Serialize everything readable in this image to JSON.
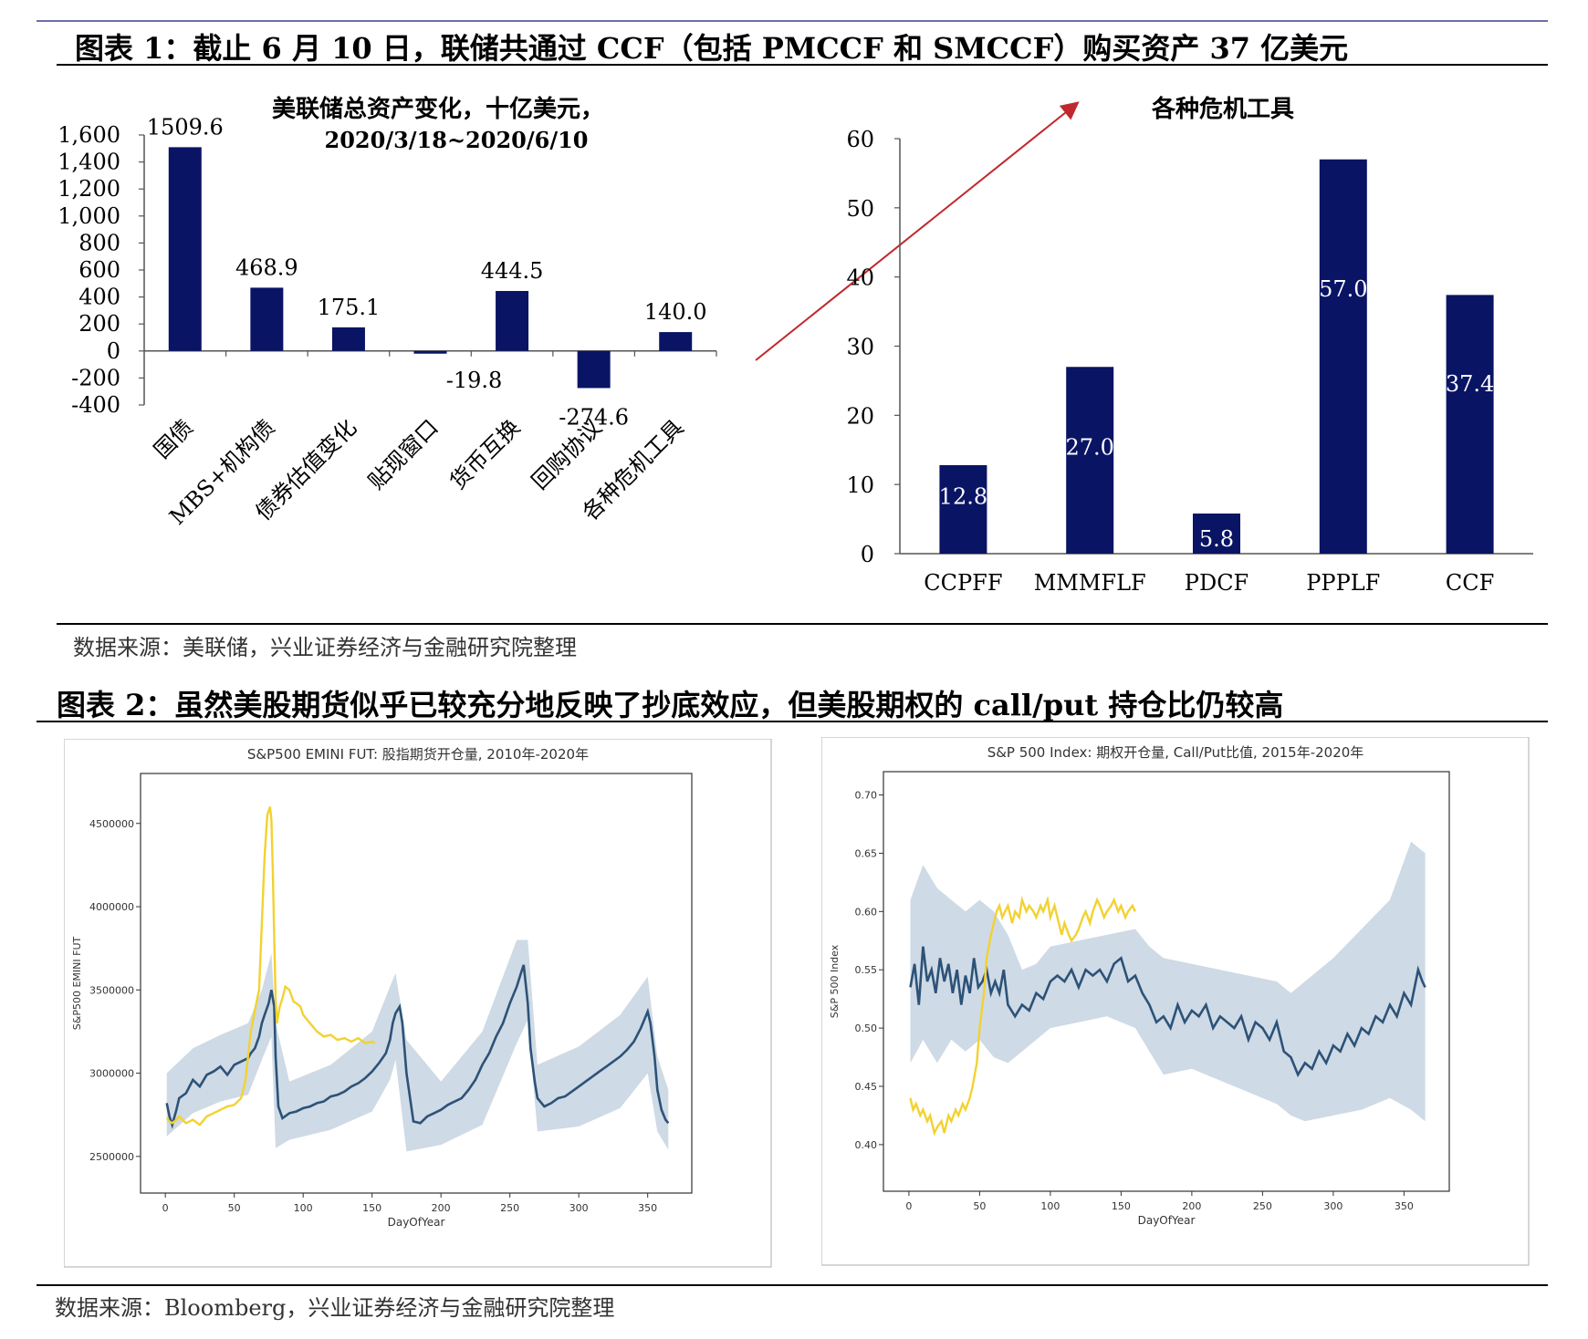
{
  "figure1": {
    "title": "图表 1：截止 6 月 10 日，联储共通过 CCF（包括 PMCCF 和 SMCCF）购买资产 37 亿美元",
    "source": "数据来源：美联储，兴业证券经济与金融研究院整理"
  },
  "figure2": {
    "title": "图表 2：虽然美股期货似乎已较充分地反映了抄底效应，但美股期权的 call/put 持仓比仍较高",
    "source": "数据来源：Bloomberg，兴业证券经济与金融研究院整理"
  },
  "colors": {
    "bar": "#0a1464",
    "arrow": "#c0282d",
    "series_band": "#c9d6e2",
    "series_line": "#2d5278",
    "series_2020": "#f2d231"
  },
  "chart_data": [
    {
      "type": "bar",
      "title": "美联储总资产变化，十亿美元，",
      "subtitle": "2020/3/18~2020/6/10",
      "categories": [
        "国债",
        "MBS+机构债",
        "债券估值变化",
        "贴现窗口",
        "货币互换",
        "回购协议",
        "各种危机工具"
      ],
      "values": [
        1509.6,
        468.9,
        175.1,
        -19.8,
        444.5,
        -274.6,
        140.0
      ],
      "value_labels": [
        "1509.6",
        "468.9",
        "175.1",
        "-19.8",
        "444.5",
        "-274.6",
        "140.0"
      ],
      "ylim": [
        -400,
        1600
      ],
      "yticks": [
        "-400",
        "-200",
        "0",
        "200",
        "400",
        "600",
        "800",
        "1,000",
        "1,200",
        "1,400",
        "1,600"
      ],
      "ytick_values": [
        -400,
        -200,
        0,
        200,
        400,
        600,
        800,
        1000,
        1200,
        1400,
        1600
      ],
      "grid": false
    },
    {
      "type": "bar",
      "title": "各种危机工具",
      "categories": [
        "CCPFF",
        "MMMFLF",
        "PDCF",
        "PPPLF",
        "CCF"
      ],
      "values": [
        12.8,
        27.0,
        5.8,
        57.0,
        37.4
      ],
      "value_labels": [
        "12.8",
        "27.0",
        "5.8",
        "57.0",
        "37.4"
      ],
      "ylim": [
        0,
        60
      ],
      "yticks": [
        "0",
        "10",
        "20",
        "30",
        "40",
        "50",
        "60"
      ],
      "ytick_values": [
        0,
        10,
        20,
        30,
        40,
        50,
        60
      ],
      "grid": false
    },
    {
      "type": "line",
      "title": "S&P500 EMINI FUT: 股指期货开仓量, 2010年-2020年",
      "xlabel": "DayOfYear",
      "ylabel": "S&P500 EMINI FUT",
      "xlim": [
        -18,
        382
      ],
      "ylim": [
        2280000,
        4800000
      ],
      "xticks": [
        "0",
        "50",
        "100",
        "150",
        "200",
        "250",
        "300",
        "350"
      ],
      "xtick_values": [
        0,
        50,
        100,
        150,
        200,
        250,
        300,
        350
      ],
      "yticks": [
        "2500000",
        "3000000",
        "3500000",
        "4000000",
        "4500000"
      ],
      "ytick_values": [
        2500000,
        3000000,
        3500000,
        4000000,
        4500000
      ],
      "grid": false,
      "series": [
        {
          "role": "mean",
          "x": [
            1,
            3,
            5,
            8,
            10,
            15,
            20,
            25,
            30,
            35,
            40,
            45,
            50,
            55,
            60,
            62,
            65,
            68,
            70,
            72,
            75,
            77,
            79,
            80,
            82,
            85,
            90,
            95,
            100,
            105,
            110,
            115,
            120,
            125,
            130,
            135,
            140,
            145,
            150,
            155,
            160,
            163,
            165,
            167,
            170,
            172,
            175,
            180,
            185,
            190,
            195,
            200,
            205,
            210,
            215,
            220,
            225,
            230,
            235,
            240,
            245,
            250,
            255,
            258,
            260,
            263,
            265,
            268,
            270,
            275,
            280,
            285,
            290,
            295,
            300,
            305,
            310,
            315,
            320,
            325,
            330,
            335,
            340,
            345,
            348,
            350,
            352,
            355,
            357,
            360,
            363,
            365
          ],
          "y": [
            2820000,
            2740000,
            2690000,
            2780000,
            2850000,
            2880000,
            2960000,
            2920000,
            2990000,
            3010000,
            3040000,
            2990000,
            3050000,
            3070000,
            3090000,
            3120000,
            3150000,
            3220000,
            3300000,
            3350000,
            3420000,
            3500000,
            3400000,
            3100000,
            2800000,
            2730000,
            2760000,
            2770000,
            2790000,
            2800000,
            2820000,
            2830000,
            2860000,
            2870000,
            2890000,
            2920000,
            2940000,
            2970000,
            3010000,
            3060000,
            3120000,
            3200000,
            3300000,
            3360000,
            3400000,
            3300000,
            3000000,
            2710000,
            2700000,
            2740000,
            2760000,
            2780000,
            2810000,
            2830000,
            2850000,
            2900000,
            2960000,
            3050000,
            3120000,
            3220000,
            3300000,
            3420000,
            3520000,
            3600000,
            3650000,
            3420000,
            3150000,
            2950000,
            2850000,
            2800000,
            2820000,
            2850000,
            2860000,
            2890000,
            2920000,
            2950000,
            2980000,
            3010000,
            3040000,
            3070000,
            3100000,
            3140000,
            3190000,
            3270000,
            3330000,
            3370000,
            3300000,
            3100000,
            2900000,
            2780000,
            2720000,
            2700000
          ]
        },
        {
          "role": "band_upper",
          "x": [
            1,
            20,
            40,
            60,
            70,
            77,
            80,
            90,
            120,
            150,
            163,
            167,
            175,
            200,
            230,
            255,
            263,
            270,
            300,
            330,
            350,
            357,
            365
          ],
          "y": [
            3000000,
            3150000,
            3230000,
            3300000,
            3500000,
            3720000,
            3300000,
            2950000,
            3050000,
            3250000,
            3520000,
            3600000,
            3200000,
            2950000,
            3250000,
            3800000,
            3800000,
            3050000,
            3160000,
            3350000,
            3580000,
            3100000,
            2900000
          ]
        },
        {
          "role": "band_lower",
          "x": [
            1,
            20,
            40,
            60,
            70,
            77,
            80,
            90,
            120,
            150,
            163,
            167,
            175,
            200,
            230,
            255,
            263,
            270,
            300,
            330,
            350,
            357,
            365
          ],
          "y": [
            2620000,
            2760000,
            2830000,
            2870000,
            3080000,
            3220000,
            2550000,
            2600000,
            2660000,
            2770000,
            2960000,
            3080000,
            2530000,
            2570000,
            2690000,
            3180000,
            3320000,
            2650000,
            2680000,
            2790000,
            3000000,
            2650000,
            2540000
          ]
        },
        {
          "name": "2020",
          "role": "current_year",
          "x": [
            1,
            3,
            5,
            8,
            10,
            15,
            20,
            25,
            30,
            35,
            40,
            45,
            50,
            55,
            58,
            60,
            62,
            65,
            68,
            70,
            72,
            74,
            76,
            77,
            78,
            79,
            80,
            81,
            83,
            85,
            87,
            90,
            93,
            95,
            98,
            100,
            105,
            110,
            115,
            120,
            125,
            130,
            135,
            140,
            145,
            150,
            152
          ],
          "y": [
            2730000,
            2710000,
            2700000,
            2720000,
            2740000,
            2700000,
            2720000,
            2690000,
            2740000,
            2760000,
            2780000,
            2800000,
            2810000,
            2850000,
            2950000,
            3100000,
            3250000,
            3380000,
            3500000,
            3900000,
            4300000,
            4550000,
            4600000,
            4520000,
            4200000,
            3800000,
            3450000,
            3300000,
            3400000,
            3450000,
            3520000,
            3500000,
            3430000,
            3420000,
            3400000,
            3350000,
            3300000,
            3250000,
            3220000,
            3230000,
            3200000,
            3210000,
            3190000,
            3210000,
            3180000,
            3190000,
            3180000
          ]
        }
      ]
    },
    {
      "type": "line",
      "title": "S&P 500 Index: 期权开仓量, Call/Put比值, 2015年-2020年",
      "xlabel": "DayOfYear",
      "ylabel": "S&P 500 Index",
      "xlim": [
        -18,
        382
      ],
      "ylim": [
        0.36,
        0.72
      ],
      "xticks": [
        "0",
        "50",
        "100",
        "150",
        "200",
        "250",
        "300",
        "350"
      ],
      "xtick_values": [
        0,
        50,
        100,
        150,
        200,
        250,
        300,
        350
      ],
      "yticks": [
        "0.40",
        "0.45",
        "0.50",
        "0.55",
        "0.60",
        "0.65",
        "0.70"
      ],
      "ytick_values": [
        0.4,
        0.45,
        0.5,
        0.55,
        0.6,
        0.65,
        0.7
      ],
      "grid": false,
      "series": [
        {
          "role": "mean",
          "x": [
            1,
            4,
            7,
            10,
            13,
            16,
            19,
            22,
            25,
            28,
            31,
            34,
            37,
            40,
            43,
            46,
            49,
            52,
            55,
            58,
            61,
            64,
            67,
            70,
            75,
            80,
            85,
            90,
            95,
            100,
            105,
            110,
            115,
            120,
            125,
            130,
            135,
            140,
            145,
            150,
            155,
            160,
            165,
            170,
            175,
            180,
            185,
            190,
            195,
            200,
            205,
            210,
            215,
            220,
            225,
            230,
            235,
            240,
            245,
            250,
            255,
            260,
            265,
            270,
            275,
            280,
            285,
            290,
            295,
            300,
            305,
            310,
            315,
            320,
            325,
            330,
            335,
            340,
            345,
            350,
            355,
            360,
            363,
            365
          ],
          "y": [
            0.535,
            0.555,
            0.52,
            0.57,
            0.54,
            0.55,
            0.53,
            0.56,
            0.54,
            0.555,
            0.53,
            0.55,
            0.52,
            0.545,
            0.53,
            0.56,
            0.535,
            0.54,
            0.55,
            0.53,
            0.54,
            0.53,
            0.55,
            0.52,
            0.51,
            0.52,
            0.515,
            0.53,
            0.525,
            0.54,
            0.545,
            0.54,
            0.55,
            0.535,
            0.55,
            0.545,
            0.55,
            0.54,
            0.555,
            0.56,
            0.54,
            0.545,
            0.53,
            0.52,
            0.505,
            0.51,
            0.5,
            0.52,
            0.505,
            0.515,
            0.51,
            0.52,
            0.5,
            0.51,
            0.505,
            0.5,
            0.51,
            0.49,
            0.505,
            0.5,
            0.49,
            0.505,
            0.48,
            0.475,
            0.46,
            0.47,
            0.465,
            0.48,
            0.47,
            0.485,
            0.48,
            0.495,
            0.485,
            0.5,
            0.495,
            0.51,
            0.505,
            0.52,
            0.51,
            0.53,
            0.52,
            0.55,
            0.54,
            0.535
          ]
        },
        {
          "role": "band_upper",
          "x": [
            1,
            10,
            20,
            30,
            40,
            50,
            60,
            70,
            80,
            90,
            100,
            120,
            140,
            160,
            170,
            180,
            200,
            220,
            240,
            260,
            270,
            280,
            300,
            320,
            340,
            355,
            365
          ],
          "y": [
            0.61,
            0.64,
            0.62,
            0.61,
            0.6,
            0.61,
            0.6,
            0.58,
            0.55,
            0.555,
            0.57,
            0.575,
            0.58,
            0.585,
            0.57,
            0.56,
            0.555,
            0.55,
            0.545,
            0.54,
            0.53,
            0.54,
            0.56,
            0.585,
            0.61,
            0.66,
            0.65
          ]
        },
        {
          "role": "band_lower",
          "x": [
            1,
            10,
            20,
            30,
            40,
            50,
            60,
            70,
            80,
            90,
            100,
            120,
            140,
            160,
            170,
            180,
            200,
            220,
            240,
            260,
            270,
            280,
            300,
            320,
            340,
            355,
            365
          ],
          "y": [
            0.47,
            0.49,
            0.47,
            0.49,
            0.48,
            0.49,
            0.475,
            0.47,
            0.48,
            0.49,
            0.5,
            0.505,
            0.51,
            0.5,
            0.48,
            0.46,
            0.465,
            0.455,
            0.445,
            0.435,
            0.425,
            0.42,
            0.425,
            0.43,
            0.44,
            0.43,
            0.42
          ]
        },
        {
          "name": "2020",
          "role": "current_year",
          "x": [
            1,
            3,
            5,
            8,
            10,
            13,
            15,
            18,
            20,
            23,
            25,
            28,
            30,
            33,
            35,
            38,
            40,
            43,
            45,
            48,
            50,
            53,
            55,
            58,
            60,
            62,
            64,
            66,
            68,
            70,
            73,
            75,
            78,
            80,
            83,
            85,
            88,
            90,
            93,
            95,
            98,
            100,
            103,
            105,
            108,
            110,
            113,
            115,
            118,
            120,
            123,
            125,
            128,
            130,
            133,
            135,
            138,
            140,
            143,
            145,
            148,
            150,
            153,
            155,
            158,
            160
          ],
          "y": [
            0.44,
            0.43,
            0.435,
            0.425,
            0.43,
            0.42,
            0.425,
            0.41,
            0.415,
            0.42,
            0.41,
            0.425,
            0.42,
            0.43,
            0.425,
            0.435,
            0.43,
            0.44,
            0.45,
            0.47,
            0.5,
            0.53,
            0.56,
            0.58,
            0.59,
            0.6,
            0.605,
            0.595,
            0.6,
            0.605,
            0.59,
            0.6,
            0.595,
            0.61,
            0.6,
            0.605,
            0.6,
            0.595,
            0.605,
            0.6,
            0.61,
            0.595,
            0.605,
            0.595,
            0.58,
            0.59,
            0.58,
            0.575,
            0.58,
            0.585,
            0.595,
            0.6,
            0.59,
            0.6,
            0.61,
            0.605,
            0.595,
            0.6,
            0.605,
            0.61,
            0.6,
            0.605,
            0.595,
            0.6,
            0.605,
            0.6
          ]
        }
      ]
    }
  ]
}
